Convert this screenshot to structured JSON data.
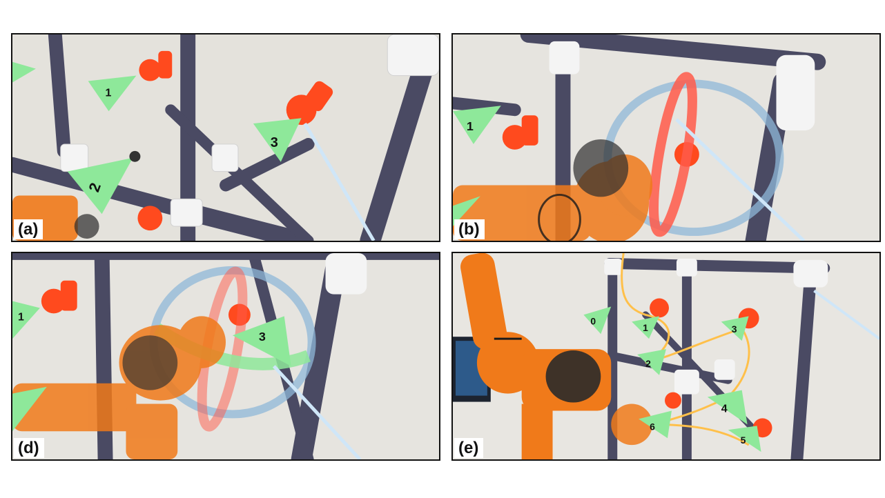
{
  "panels": [
    {
      "label": "(a)",
      "markers": [
        "1",
        "2",
        "3"
      ]
    },
    {
      "label": "(b)",
      "markers": [
        "1"
      ]
    },
    {
      "label": "(d)",
      "markers": [
        "1",
        "3"
      ]
    },
    {
      "label": "(e)",
      "markers": [
        "0",
        "1",
        "2",
        "3",
        "4",
        "5",
        "6"
      ]
    }
  ],
  "colors": {
    "pipe": "#4a4a63",
    "joint": "#f4f4f4",
    "robot": "#f07a1a",
    "marker": "#8ee89a",
    "target": "#ff4a1e",
    "ring_blue": "#8fb8d8",
    "ring_red": "#ff5a4a",
    "ray": "#cfe6f8",
    "path": "#ffc04a"
  }
}
